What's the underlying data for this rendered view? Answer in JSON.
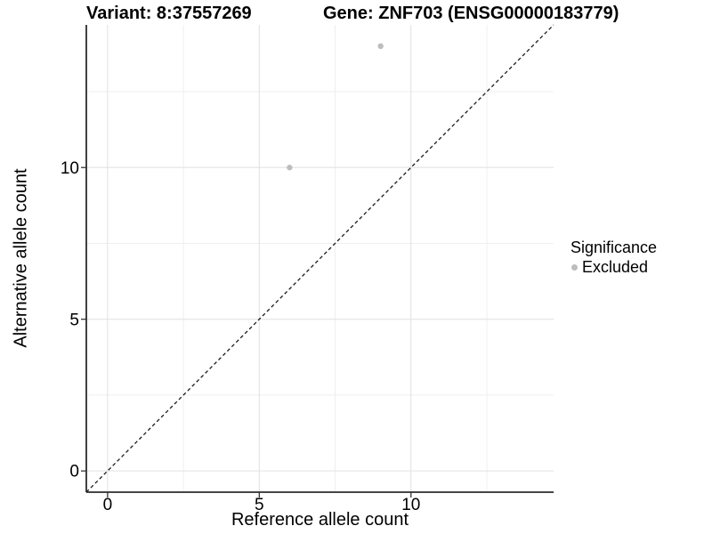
{
  "chart_data": {
    "type": "scatter",
    "title_left": "Variant: 8:37557269",
    "title_right": "Gene: ZNF703 (ENSG00000183779)",
    "xlabel": "Reference allele count",
    "ylabel": "Alternative allele count",
    "xlim": [
      -0.7,
      14.7
    ],
    "ylim": [
      -0.7,
      14.7
    ],
    "xticks": [
      0,
      5,
      10
    ],
    "yticks": [
      0,
      5,
      10
    ],
    "x_minor_ticks": [
      2.5,
      7.5,
      12.5
    ],
    "y_minor_ticks": [
      2.5,
      7.5,
      12.5
    ],
    "grid": true,
    "identity_line": {
      "style": "dashed",
      "from": [
        -0.7,
        -0.7
      ],
      "to": [
        14.7,
        14.7
      ],
      "color": "#1a1a1a"
    },
    "series": [
      {
        "name": "Excluded",
        "color": "#bdbdbd",
        "points": [
          [
            6,
            10
          ],
          [
            9,
            14
          ]
        ]
      }
    ],
    "legend": {
      "title": "Significance",
      "position": "right",
      "items": [
        {
          "label": "Excluded",
          "color": "#bdbdbd"
        }
      ]
    }
  },
  "colors": {
    "background": "#ffffff",
    "grid_major": "#e3e3e3",
    "grid_minor": "#efefef",
    "axis_line": "#2b2b2b",
    "tick_mark": "#333333",
    "tick_label": "#000000",
    "point": "#bdbdbd"
  }
}
